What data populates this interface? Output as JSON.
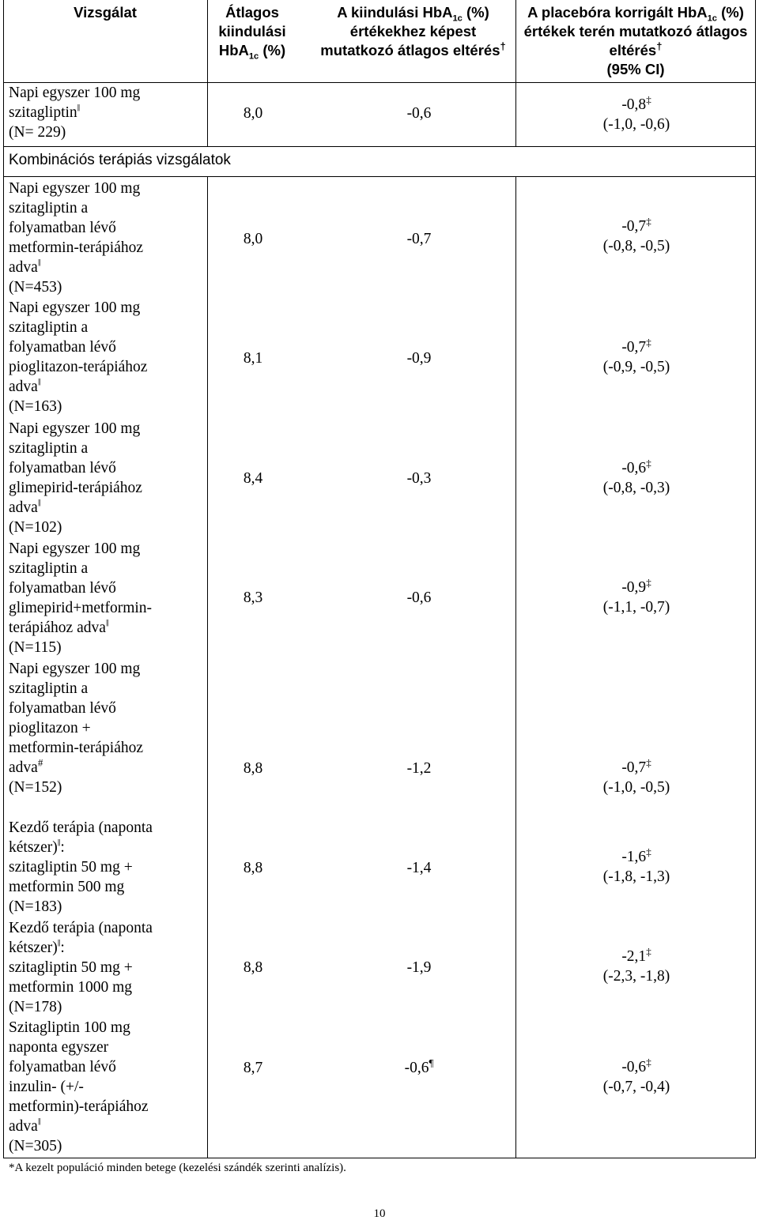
{
  "header": {
    "col1": "Vizsgálat",
    "col2": {
      "pre": "Átlagos kiindulási HbA",
      "sub": "1c",
      "post": " (%)"
    },
    "col3": {
      "pre": "A kiindulási HbA",
      "sub": "1c",
      "post": " (%) értékekhez képest mutatkozó átlagos eltérés",
      "mark": "†"
    },
    "col4": {
      "pre": "A placebóra korrigált HbA",
      "sub": "1c",
      "post": " (%) értékek terén mutatkozó átlagos eltérés",
      "mark": "†",
      "tail": "(95% CI)"
    }
  },
  "section_label": "Kombinációs terápiás vizsgálatok",
  "rows": [
    {
      "label": "Napi egyszer 100 mg\nszitagliptin",
      "label_mark": "‖",
      "n": "(N= 229)",
      "baseline": "8,0",
      "change": "-0,6",
      "change_mark": "",
      "corrected": "-0,8",
      "corr_mark": "‡",
      "ci": "(-1,0, -0,6)"
    },
    {
      "label": "Napi egyszer 100 mg\nszitagliptin a\nfolyamatban lévő\nmetformin-terápiához\nadva",
      "label_mark": "‖",
      "n": "(N=453)",
      "baseline": "8,0",
      "change": "-0,7",
      "change_mark": "",
      "corrected": "-0,7",
      "corr_mark": "‡",
      "ci": "(-0,8, -0,5)"
    },
    {
      "label": "Napi egyszer 100 mg\nszitagliptin a\nfolyamatban lévő\npioglitazon-terápiához\nadva",
      "label_mark": "‖",
      "n": "(N=163)",
      "baseline": "8,1",
      "change": "-0,9",
      "change_mark": "",
      "corrected": "-0,7",
      "corr_mark": "‡",
      "ci": "(-0,9, -0,5)"
    },
    {
      "label": "Napi egyszer 100 mg\nszitagliptin a\nfolyamatban lévő\nglimepirid-terápiához\nadva",
      "label_mark": "‖",
      "n": "(N=102)",
      "baseline": "8,4",
      "change": "-0,3",
      "change_mark": "",
      "corrected": "-0,6",
      "corr_mark": "‡",
      "ci": "(-0,8, -0,3)"
    },
    {
      "label": "Napi egyszer 100 mg\nszitagliptin a\nfolyamatban lévő\nglimepirid+metformin-\nterápiához adva",
      "label_mark": "‖",
      "n": "(N=115)",
      "baseline": "8,3",
      "change": "-0,6",
      "change_mark": "",
      "corrected": "-0,9",
      "corr_mark": "‡",
      "ci": "(-1,1, -0,7)"
    },
    {
      "label": "Napi egyszer 100 mg\nszitagliptin a\nfolyamatban lévő\npioglitazon +\nmetformin-terápiához\nadva",
      "label_mark": "#",
      "n": "(N=152)",
      "baseline": "8,8",
      "change": "-1,2",
      "change_mark": "",
      "corrected": "-0,7",
      "corr_mark": "‡",
      "ci": "(-1,0, -0,5)"
    },
    {
      "label": "Kezdő terápia (naponta\nkétszer)",
      "label_mark": "‖",
      "label_after": ":",
      "label2": "szitagliptin 50 mg +\nmetformin 500 mg",
      "n": "(N=183)",
      "baseline": "8,8",
      "change": "-1,4",
      "change_mark": "",
      "corrected": "-1,6",
      "corr_mark": "‡",
      "ci": "(-1,8, -1,3)"
    },
    {
      "label": "Kezdő terápia (naponta\nkétszer)",
      "label_mark": "‖",
      "label_after": ":",
      "label2": "szitagliptin 50 mg +\nmetformin 1000 mg",
      "n": "(N=178)",
      "baseline": "8,8",
      "change": "-1,9",
      "change_mark": "",
      "corrected": "-2,1",
      "corr_mark": "‡",
      "ci": "(-2,3, -1,8)"
    },
    {
      "label": "Szitagliptin 100 mg\nnaponta egyszer\nfolyamatban lévő\ninzulin- (+/-\nmetformin)-terápiához\nadva",
      "label_mark": "‖",
      "n": "(N=305)",
      "baseline": "8,7",
      "change": "-0,6",
      "change_mark": "¶",
      "corrected": "-0,6",
      "corr_mark": "‡",
      "ci": "(-0,7, -0,4)"
    }
  ],
  "footnote": "*A kezelt populáció minden betege (kezelési szándék szerinti analízis).",
  "page_number": "10"
}
